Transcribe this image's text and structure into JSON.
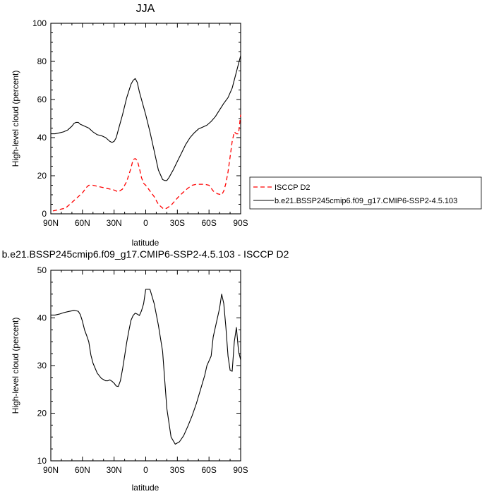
{
  "chart_data": [
    {
      "type": "line",
      "title": "JJA",
      "xlabel": "latitude",
      "ylabel": "High-level cloud (percent)",
      "xlim": [
        90,
        -90
      ],
      "ylim": [
        0,
        100
      ],
      "x_ticks": [
        90,
        60,
        30,
        0,
        -30,
        -60,
        -90
      ],
      "x_tick_labels": [
        "90N",
        "60N",
        "30N",
        "0",
        "30S",
        "60S",
        "90S"
      ],
      "y_ticks": [
        0,
        20,
        40,
        60,
        80,
        100
      ],
      "y_tick_labels": [
        "0",
        "20",
        "40",
        "60",
        "80",
        "100"
      ],
      "legend_position": "right, outside plot area",
      "series": [
        {
          "name": "ISCCP D2",
          "color": "#ff0000",
          "dash": "dashed",
          "x": [
            88,
            84,
            80,
            76,
            72,
            68,
            64,
            60,
            56,
            54,
            50,
            46,
            42,
            38,
            34,
            30,
            28,
            26,
            22,
            18,
            14,
            12,
            10,
            8,
            6,
            4,
            2,
            0,
            -4,
            -8,
            -12,
            -16,
            -18,
            -20,
            -24,
            -28,
            -32,
            -36,
            -40,
            -44,
            -48,
            -52,
            -56,
            -60,
            -64,
            -68,
            -72,
            -74,
            -76,
            -78,
            -80,
            -82,
            -84,
            -86,
            -88,
            -90
          ],
          "y": [
            1.5,
            2,
            2.5,
            3,
            5,
            7,
            9,
            11,
            14,
            15,
            15,
            14.5,
            14,
            13.5,
            13,
            12.5,
            12,
            11.5,
            13,
            17,
            24,
            28.5,
            29,
            28,
            24,
            19,
            16,
            15,
            12,
            9,
            5,
            3,
            2.5,
            3,
            4.5,
            7,
            9.5,
            11.5,
            13.5,
            15,
            15.5,
            15.5,
            15.5,
            15,
            12,
            10.5,
            10,
            12,
            16,
            22,
            30,
            38,
            43,
            42,
            42,
            52
          ]
        },
        {
          "name": "b.e21.BSSP245cmip6.f09_g17.CMIP6-SSP2-4.5.103",
          "color": "#000000",
          "dash": "solid",
          "x": [
            90,
            86,
            82,
            78,
            74,
            70,
            68,
            66,
            64,
            62,
            60,
            58,
            56,
            54,
            52,
            50,
            46,
            42,
            38,
            34,
            32,
            30,
            28,
            26,
            22,
            18,
            14,
            12,
            10,
            8,
            6,
            4,
            2,
            0,
            -4,
            -8,
            -12,
            -16,
            -18,
            -20,
            -22,
            -26,
            -30,
            -34,
            -38,
            -42,
            -46,
            -50,
            -54,
            -58,
            -62,
            -66,
            -70,
            -74,
            -78,
            -82,
            -86,
            -90
          ],
          "y": [
            42,
            42,
            42.5,
            43,
            44,
            46,
            47.5,
            48,
            48,
            47,
            46.5,
            46,
            45.5,
            45,
            44,
            43,
            41.5,
            41,
            40,
            38,
            37.5,
            38,
            40,
            44,
            52,
            61,
            68,
            70,
            71,
            69,
            64,
            60,
            56,
            52,
            43,
            33,
            23,
            18,
            17.5,
            17.5,
            19,
            23,
            27.5,
            32,
            36.5,
            40,
            42.5,
            44.5,
            45.5,
            46.5,
            48.5,
            51,
            54.5,
            58,
            61,
            66,
            74.5,
            83
          ]
        }
      ]
    },
    {
      "type": "line",
      "title": "b.e21.BSSP245cmip6.f09_g17.CMIP6-SSP2-4.5.103 - ISCCP D2",
      "xlabel": "latitude",
      "ylabel": "High-level cloud (percent)",
      "xlim": [
        90,
        -90
      ],
      "ylim": [
        10,
        50
      ],
      "x_ticks": [
        90,
        60,
        30,
        0,
        -30,
        -60,
        -90
      ],
      "x_tick_labels": [
        "90N",
        "60N",
        "30N",
        "0",
        "30S",
        "60S",
        "90S"
      ],
      "y_ticks": [
        10,
        20,
        30,
        40,
        50
      ],
      "y_tick_labels": [
        "10",
        "20",
        "30",
        "40",
        "50"
      ],
      "series": [
        {
          "color": "#000000",
          "dash": "solid",
          "x": [
            90,
            86,
            82,
            78,
            74,
            70,
            68,
            66,
            64,
            62,
            60,
            58,
            56,
            54,
            52,
            50,
            46,
            42,
            38,
            36,
            34,
            32,
            30,
            28,
            26,
            24,
            22,
            20,
            18,
            16,
            14,
            12,
            10,
            8,
            6,
            4,
            2,
            0,
            -4,
            -8,
            -12,
            -16,
            -18,
            -20,
            -24,
            -28,
            -32,
            -36,
            -40,
            -44,
            -48,
            -52,
            -56,
            -58,
            -60,
            -62,
            -64,
            -66,
            -68,
            -70,
            -72,
            -74,
            -76,
            -78,
            -80,
            -82,
            -84,
            -86,
            -88,
            -90
          ],
          "y": [
            40.6,
            40.6,
            40.8,
            41.1,
            41.3,
            41.5,
            41.6,
            41.5,
            41.4,
            40.7,
            39.3,
            37.5,
            36.3,
            35,
            32.2,
            30.5,
            28.4,
            27.3,
            26.8,
            26.8,
            27,
            26.7,
            26.3,
            25.7,
            25.6,
            26.8,
            29.2,
            32,
            34.9,
            37.3,
            39.5,
            40.5,
            41,
            40.8,
            40.5,
            41.5,
            43,
            46,
            46,
            43,
            38.5,
            33,
            27,
            21,
            15,
            13.5,
            14,
            15.3,
            17.3,
            19.5,
            22,
            25,
            28,
            30,
            31,
            32,
            36,
            38,
            40,
            42,
            45,
            43,
            38,
            32,
            29,
            28.8,
            35,
            38,
            33,
            31.2
          ]
        }
      ]
    }
  ]
}
